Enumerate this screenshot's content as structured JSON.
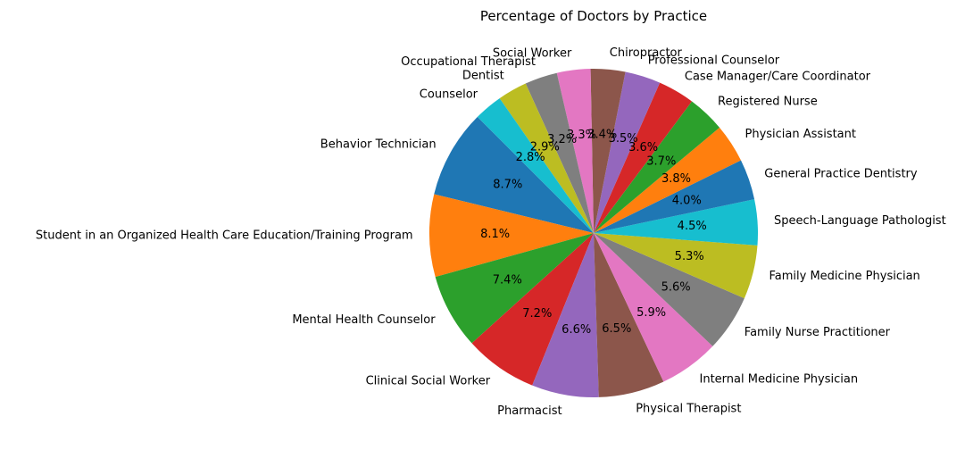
{
  "chart_data": {
    "type": "pie",
    "title": "Percentage of Doctors by Practice",
    "start_angle_deg": 135,
    "direction": "counterclockwise",
    "slices": [
      {
        "label": "Behavior Technician",
        "value": 8.7,
        "pct_label": "8.7%",
        "color": "#1f77b4"
      },
      {
        "label": "Student in an Organized Health Care Education/Training Program",
        "value": 8.1,
        "pct_label": "8.1%",
        "color": "#ff7f0e"
      },
      {
        "label": "Mental Health Counselor",
        "value": 7.4,
        "pct_label": "7.4%",
        "color": "#2ca02c"
      },
      {
        "label": "Clinical Social Worker",
        "value": 7.2,
        "pct_label": "7.2%",
        "color": "#d62728"
      },
      {
        "label": "Pharmacist",
        "value": 6.6,
        "pct_label": "6.6%",
        "color": "#9467bd"
      },
      {
        "label": "Physical Therapist",
        "value": 6.5,
        "pct_label": "6.5%",
        "color": "#8c564b"
      },
      {
        "label": "Internal Medicine Physician",
        "value": 5.9,
        "pct_label": "5.9%",
        "color": "#e377c2"
      },
      {
        "label": "Family Nurse Practitioner",
        "value": 5.6,
        "pct_label": "5.6%",
        "color": "#7f7f7f"
      },
      {
        "label": "Family Medicine Physician",
        "value": 5.3,
        "pct_label": "5.3%",
        "color": "#bcbd22"
      },
      {
        "label": "Speech-Language Pathologist",
        "value": 4.5,
        "pct_label": "4.5%",
        "color": "#17becf"
      },
      {
        "label": "General Practice Dentistry",
        "value": 4.0,
        "pct_label": "4.0%",
        "color": "#1f77b4"
      },
      {
        "label": "Physician Assistant",
        "value": 3.8,
        "pct_label": "3.8%",
        "color": "#ff7f0e"
      },
      {
        "label": "Registered Nurse",
        "value": 3.7,
        "pct_label": "3.7%",
        "color": "#2ca02c"
      },
      {
        "label": "Case Manager/Care Coordinator",
        "value": 3.6,
        "pct_label": "3.6%",
        "color": "#d62728"
      },
      {
        "label": "Professional Counselor",
        "value": 3.5,
        "pct_label": "3.5%",
        "color": "#9467bd"
      },
      {
        "label": "Chiropractor",
        "value": 3.4,
        "pct_label": "3.4%",
        "color": "#8c564b"
      },
      {
        "label": "Social Worker",
        "value": 3.3,
        "pct_label": "3.3%",
        "color": "#e377c2"
      },
      {
        "label": "Occupational Therapist",
        "value": 3.2,
        "pct_label": "3.2%",
        "color": "#7f7f7f"
      },
      {
        "label": "Dentist",
        "value": 2.9,
        "pct_label": "2.9%",
        "color": "#bcbd22"
      },
      {
        "label": "Counselor",
        "value": 2.8,
        "pct_label": "2.8%",
        "color": "#17becf"
      }
    ]
  }
}
